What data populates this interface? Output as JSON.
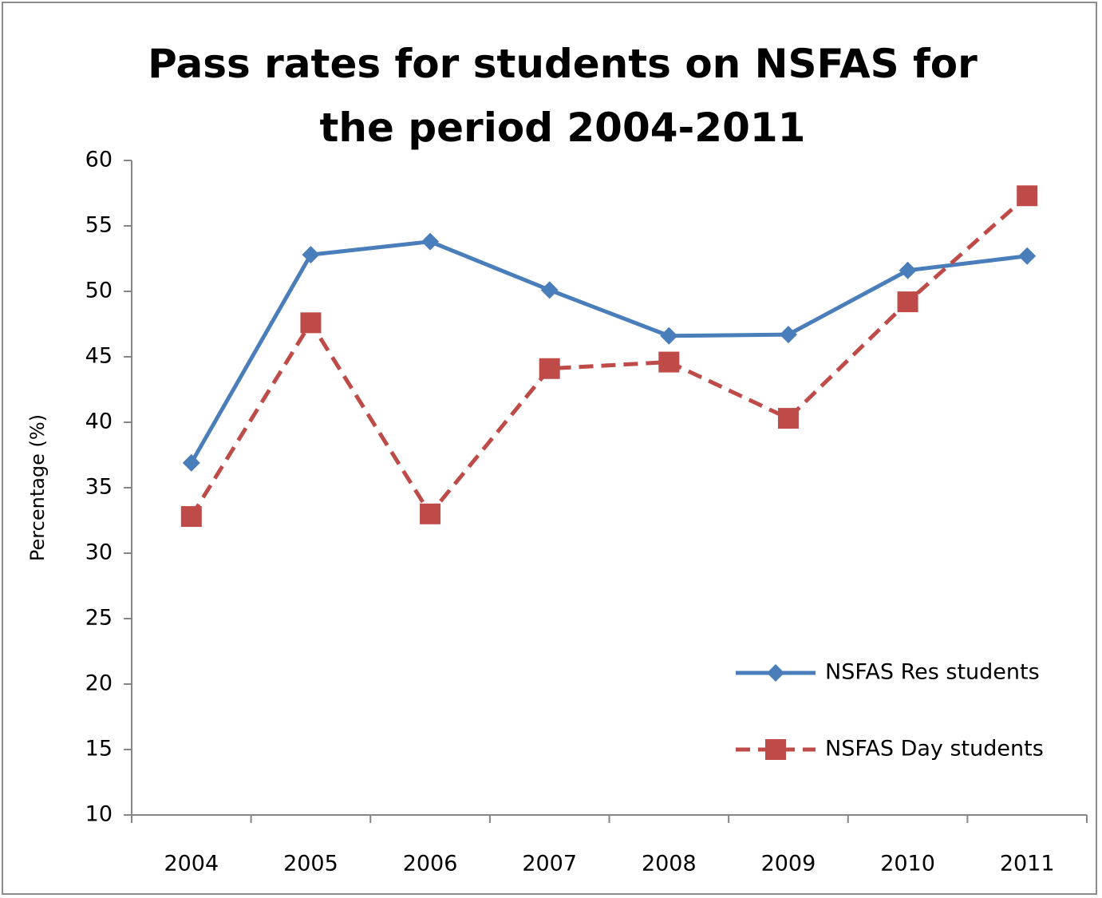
{
  "chart_data": {
    "type": "line",
    "title": "Pass rates for students on NSFAS for the period 2004-2011",
    "y_label": "Percentage (%)",
    "categories": [
      "2004",
      "2005",
      "2006",
      "2007",
      "2008",
      "2009",
      "2010",
      "2011"
    ],
    "series": [
      {
        "name": "NSFAS Res students",
        "color": "#4a7ebb",
        "marker": "diamond",
        "dash": false,
        "values": [
          36.9,
          52.8,
          53.8,
          50.1,
          46.6,
          46.7,
          51.6,
          52.7
        ]
      },
      {
        "name": "NSFAS Day students",
        "color": "#be4b48",
        "marker": "square",
        "dash": true,
        "values": [
          32.8,
          47.6,
          33.0,
          44.1,
          44.6,
          40.3,
          49.2,
          57.3
        ]
      }
    ],
    "ylim": [
      10,
      60
    ],
    "yticks": [
      10,
      15,
      20,
      25,
      30,
      35,
      40,
      45,
      50,
      55,
      60
    ],
    "grid": false,
    "legend": "right"
  }
}
